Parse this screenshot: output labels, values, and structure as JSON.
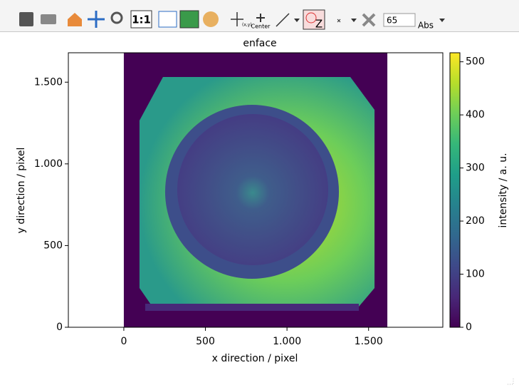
{
  "toolbar": {
    "zoom_ratio": "1:1",
    "crosshair_label": "(x,y)",
    "center_label": "Center",
    "mask_label": "Z",
    "spin_value": 65,
    "scale_label": "Abs"
  },
  "chart_data": {
    "type": "image",
    "title": "enface",
    "x_label": "x direction / pixel",
    "y_label": "y direction / pixel",
    "xlim": [
      -340,
      1955
    ],
    "ylim": [
      0,
      1680
    ],
    "xticks": [
      0,
      500,
      {
        "value": 1000,
        "label": "1.000"
      },
      {
        "value": 1500,
        "label": "1.500"
      }
    ],
    "yticks": [
      0,
      500,
      {
        "value": 1000,
        "label": "1.000"
      },
      {
        "value": 1500,
        "label": "1.500"
      }
    ],
    "extent": [
      0,
      1615,
      0,
      1680
    ],
    "colormap": "viridis",
    "colorbar": {
      "label": "intensity / a. u.",
      "lim": [
        0,
        517
      ],
      "ticks": [
        0,
        100,
        200,
        300,
        400,
        500
      ]
    }
  }
}
